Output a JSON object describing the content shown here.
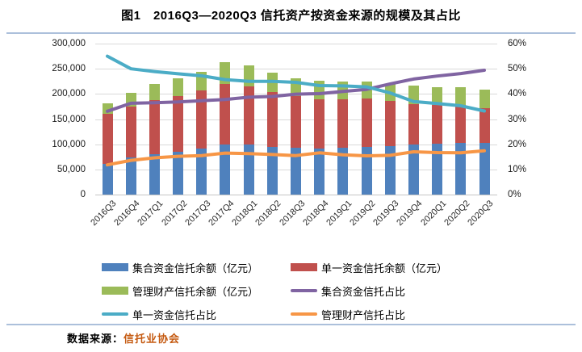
{
  "title": "图1　2016Q3—2020Q3 信托资产按资金来源的规模及其占比",
  "source": {
    "prefix": "数据来源：",
    "name": "信托业协会"
  },
  "colors": {
    "bar_blue": "#4F81BD",
    "bar_red": "#C0504D",
    "bar_green": "#9BBB59",
    "line_purple": "#8064A2",
    "line_cyan": "#4BACC6",
    "line_orange": "#F79646",
    "gridline": "#D9D9D9",
    "divider_rule": "#ACC0DB",
    "source_name": "#C55A11"
  },
  "chart_data": {
    "type": "bar",
    "subtype": "stacked-bars-with-percent-lines",
    "categories": [
      "2016Q3",
      "2016Q4",
      "2017Q1",
      "2017Q2",
      "2017Q3",
      "2017Q4",
      "2018Q1",
      "2018Q2",
      "2018Q3",
      "2018Q4",
      "2019Q1",
      "2019Q2",
      "2019Q3",
      "2019Q4",
      "2020Q1",
      "2020Q2",
      "2020Q3"
    ],
    "series": [
      {
        "name": "集合资金信托余额（亿元）",
        "type": "bar",
        "axis": "left",
        "color": "#4F81BD",
        "values": [
          60200,
          73400,
          80200,
          85200,
          91100,
          99100,
          99100,
          94700,
          92300,
          91100,
          92400,
          94100,
          96800,
          99200,
          100500,
          102400,
          103100
        ]
      },
      {
        "name": "单一资金信托余额（亿元）",
        "type": "bar",
        "axis": "left",
        "color": "#C0504D",
        "values": [
          100000,
          101200,
          107400,
          111100,
          115200,
          120000,
          115300,
          109300,
          103300,
          98300,
          97300,
          96400,
          88800,
          80000,
          77200,
          75100,
          69200
        ]
      },
      {
        "name": "管理财产信托余额（亿元）",
        "type": "bar",
        "axis": "left",
        "color": "#9BBB59",
        "values": [
          21500,
          27600,
          32100,
          35100,
          37800,
          43400,
          41700,
          38700,
          35800,
          37600,
          35700,
          34800,
          34300,
          36800,
          35600,
          35300,
          36300
        ]
      },
      {
        "name": "集合资金信托占比",
        "type": "line",
        "axis": "right",
        "color": "#8064A2",
        "values": [
          33.1,
          36.3,
          36.5,
          36.8,
          37.3,
          37.8,
          38.7,
          39.0,
          39.9,
          40.1,
          41.0,
          41.8,
          44.0,
          45.9,
          47.1,
          48.1,
          49.4
        ]
      },
      {
        "name": "单一资金信托占比",
        "type": "line",
        "axis": "right",
        "color": "#4BACC6",
        "values": [
          55.0,
          50.0,
          48.9,
          48.0,
          47.2,
          45.7,
          45.0,
          45.0,
          44.6,
          43.3,
          43.2,
          42.8,
          40.4,
          37.0,
          36.2,
          35.3,
          33.2
        ]
      },
      {
        "name": "管理财产信托占比",
        "type": "line",
        "axis": "right",
        "color": "#F79646",
        "values": [
          11.8,
          13.6,
          14.6,
          15.2,
          15.5,
          16.5,
          16.3,
          15.9,
          15.5,
          16.6,
          15.8,
          15.4,
          15.6,
          17.0,
          16.7,
          16.6,
          17.4
        ]
      }
    ],
    "left_axis": {
      "min": 0,
      "max": 300000,
      "tick_labels": [
        "300,000",
        "250,000",
        "200,000",
        "150,000",
        "100,000",
        "50,000",
        "0"
      ]
    },
    "right_axis": {
      "min": 0,
      "max": 60,
      "tick_labels": [
        "60%",
        "50%",
        "40%",
        "30%",
        "20%",
        "10%",
        "0%"
      ]
    },
    "grid": true,
    "legend_position": "bottom",
    "stacked": true
  }
}
